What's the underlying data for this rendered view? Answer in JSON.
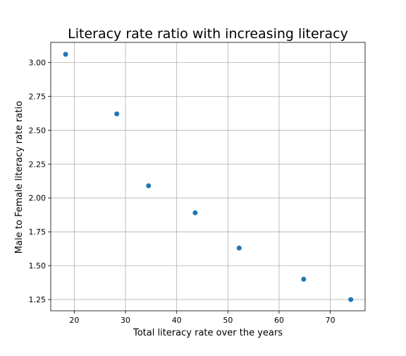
{
  "chart_data": {
    "type": "scatter",
    "title": "Literacy rate ratio with increasing literacy",
    "xlabel": "Total literacy rate over the years",
    "ylabel": "Male to Female literacy rate ratio",
    "xlim": [
      15.4,
      76.8
    ],
    "ylim": [
      1.167,
      3.148
    ],
    "xticks": [
      20,
      30,
      40,
      50,
      60,
      70
    ],
    "yticks": [
      1.25,
      1.5,
      1.75,
      2.0,
      2.25,
      2.5,
      2.75,
      3.0
    ],
    "xtick_labels": [
      "20",
      "30",
      "40",
      "50",
      "60",
      "70"
    ],
    "ytick_labels": [
      "1.25",
      "1.50",
      "1.75",
      "2.00",
      "2.25",
      "2.50",
      "2.75",
      "3.00"
    ],
    "grid": true,
    "point_color": "#1f77b4",
    "points": [
      {
        "x": 18.3,
        "y": 3.06
      },
      {
        "x": 28.3,
        "y": 2.62
      },
      {
        "x": 34.5,
        "y": 2.09
      },
      {
        "x": 43.6,
        "y": 1.89
      },
      {
        "x": 52.2,
        "y": 1.63
      },
      {
        "x": 64.8,
        "y": 1.4
      },
      {
        "x": 74.0,
        "y": 1.25
      }
    ]
  }
}
